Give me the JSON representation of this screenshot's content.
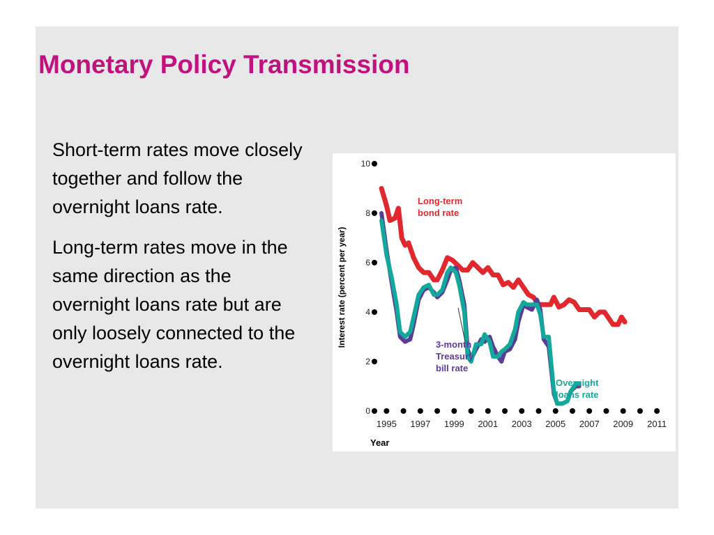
{
  "slide": {
    "title": "Monetary Policy Transmission",
    "paragraphs": [
      "Short-term rates move closely together and follow the overnight loans rate.",
      "Long-term rates move in the same direction as the overnight loans rate but are only loosely connected to the overnight loans rate."
    ],
    "title_color": "#c0127f",
    "background": "#e8e8e8"
  },
  "chart_data": {
    "type": "line",
    "title": "",
    "xlabel": "Year",
    "ylabel": "Interest rate (percent per year)",
    "xlim": [
      1994.2,
      2011.2
    ],
    "ylim": [
      0,
      10
    ],
    "x_ticks": [
      "1995",
      "1997",
      "1999",
      "2001",
      "2003",
      "2005",
      "2007",
      "2009",
      "2011"
    ],
    "y_ticks": [
      "0",
      "2",
      "4",
      "6",
      "8",
      "10"
    ],
    "grid": false,
    "legend": "inline labels",
    "series": [
      {
        "name": "Long-term bond rate",
        "label_lines": [
          "Long-term",
          "bond rate"
        ],
        "color": "#e0282e",
        "points": [
          [
            1994.7,
            9.0
          ],
          [
            1995.0,
            8.3
          ],
          [
            1995.2,
            7.7
          ],
          [
            1995.5,
            7.8
          ],
          [
            1995.7,
            8.2
          ],
          [
            1995.9,
            7.0
          ],
          [
            1996.1,
            6.7
          ],
          [
            1996.3,
            6.8
          ],
          [
            1996.6,
            6.2
          ],
          [
            1996.9,
            5.8
          ],
          [
            1997.2,
            5.6
          ],
          [
            1997.5,
            5.6
          ],
          [
            1997.8,
            5.3
          ],
          [
            1998.0,
            5.3
          ],
          [
            1998.3,
            5.7
          ],
          [
            1998.6,
            6.2
          ],
          [
            1998.9,
            6.1
          ],
          [
            1999.2,
            5.9
          ],
          [
            1999.5,
            5.7
          ],
          [
            1999.8,
            5.7
          ],
          [
            2000.1,
            6.0
          ],
          [
            2000.4,
            5.8
          ],
          [
            2000.7,
            5.6
          ],
          [
            2001.0,
            5.8
          ],
          [
            2001.3,
            5.5
          ],
          [
            2001.6,
            5.5
          ],
          [
            2001.9,
            5.1
          ],
          [
            2002.2,
            5.2
          ],
          [
            2002.5,
            5.0
          ],
          [
            2002.8,
            5.3
          ],
          [
            2003.1,
            5.0
          ],
          [
            2003.4,
            4.7
          ],
          [
            2003.7,
            4.6
          ],
          [
            2004.0,
            4.3
          ],
          [
            2004.4,
            4.3
          ],
          [
            2004.7,
            4.3
          ],
          [
            2004.9,
            4.6
          ],
          [
            2005.2,
            4.2
          ],
          [
            2005.5,
            4.3
          ],
          [
            2005.8,
            4.5
          ],
          [
            2006.1,
            4.4
          ],
          [
            2006.4,
            4.1
          ],
          [
            2006.7,
            4.1
          ],
          [
            2007.0,
            4.1
          ],
          [
            2007.3,
            3.8
          ],
          [
            2007.6,
            4.0
          ],
          [
            2007.9,
            4.0
          ],
          [
            2008.2,
            3.7
          ],
          [
            2008.4,
            3.5
          ],
          [
            2008.7,
            3.5
          ],
          [
            2008.9,
            3.8
          ],
          [
            2009.1,
            3.6
          ]
        ]
      },
      {
        "name": "3-month Treasury bill rate",
        "label_lines": [
          "3-month",
          "Treasury",
          "bill rate"
        ],
        "color": "#5c3b96",
        "points": [
          [
            1994.7,
            8.0
          ],
          [
            1995.0,
            6.5
          ],
          [
            1995.3,
            5.2
          ],
          [
            1995.6,
            4.0
          ],
          [
            1995.8,
            3.0
          ],
          [
            1996.1,
            2.8
          ],
          [
            1996.4,
            2.9
          ],
          [
            1996.6,
            3.5
          ],
          [
            1996.9,
            4.5
          ],
          [
            1997.2,
            4.9
          ],
          [
            1997.5,
            5.0
          ],
          [
            1997.8,
            4.8
          ],
          [
            1998.0,
            4.6
          ],
          [
            1998.3,
            4.8
          ],
          [
            1998.6,
            5.3
          ],
          [
            1998.8,
            5.7
          ],
          [
            1999.1,
            5.8
          ],
          [
            1999.3,
            5.3
          ],
          [
            1999.6,
            4.3
          ],
          [
            1999.8,
            2.5
          ],
          [
            2000.0,
            2.1
          ],
          [
            2000.3,
            2.5
          ],
          [
            2000.6,
            2.9
          ],
          [
            2000.8,
            2.8
          ],
          [
            2001.1,
            3.0
          ],
          [
            2001.3,
            2.6
          ],
          [
            2001.6,
            2.2
          ],
          [
            2001.8,
            2.0
          ],
          [
            2002.0,
            2.4
          ],
          [
            2002.3,
            2.5
          ],
          [
            2002.6,
            2.9
          ],
          [
            2002.8,
            3.6
          ],
          [
            2003.1,
            4.3
          ],
          [
            2003.3,
            4.2
          ],
          [
            2003.6,
            4.1
          ],
          [
            2003.9,
            4.5
          ],
          [
            2004.1,
            4.1
          ],
          [
            2004.3,
            2.9
          ],
          [
            2004.6,
            2.6
          ],
          [
            2004.9,
            0.7
          ],
          [
            2005.1,
            0.3
          ],
          [
            2005.4,
            0.3
          ],
          [
            2005.7,
            0.4
          ],
          [
            2005.9,
            0.8
          ],
          [
            2006.2,
            1.0
          ],
          [
            2006.4,
            1.0
          ]
        ]
      },
      {
        "name": "Overnight loans rate",
        "label_lines": [
          "Overnight",
          "loans rate"
        ],
        "color": "#12a89b",
        "points": [
          [
            1994.7,
            7.7
          ],
          [
            1995.0,
            6.3
          ],
          [
            1995.3,
            5.4
          ],
          [
            1995.6,
            4.3
          ],
          [
            1995.8,
            3.2
          ],
          [
            1996.1,
            3.0
          ],
          [
            1996.4,
            3.2
          ],
          [
            1996.6,
            3.8
          ],
          [
            1996.9,
            4.7
          ],
          [
            1997.2,
            5.0
          ],
          [
            1997.5,
            5.1
          ],
          [
            1997.8,
            4.7
          ],
          [
            1998.0,
            4.7
          ],
          [
            1998.3,
            4.9
          ],
          [
            1998.6,
            5.6
          ],
          [
            1998.8,
            5.8
          ],
          [
            1999.1,
            5.6
          ],
          [
            1999.3,
            5.1
          ],
          [
            1999.6,
            4.0
          ],
          [
            1999.8,
            2.2
          ],
          [
            2000.0,
            2.0
          ],
          [
            2000.3,
            2.7
          ],
          [
            2000.6,
            2.7
          ],
          [
            2000.8,
            3.1
          ],
          [
            2001.1,
            2.8
          ],
          [
            2001.3,
            2.2
          ],
          [
            2001.6,
            2.2
          ],
          [
            2001.8,
            2.4
          ],
          [
            2002.0,
            2.5
          ],
          [
            2002.3,
            2.7
          ],
          [
            2002.6,
            3.3
          ],
          [
            2002.8,
            4.0
          ],
          [
            2003.1,
            4.4
          ],
          [
            2003.3,
            4.3
          ],
          [
            2003.6,
            4.3
          ],
          [
            2003.9,
            4.3
          ],
          [
            2004.1,
            3.9
          ],
          [
            2004.3,
            3.0
          ],
          [
            2004.6,
            3.0
          ],
          [
            2004.9,
            0.8
          ],
          [
            2005.1,
            0.3
          ],
          [
            2005.4,
            0.3
          ],
          [
            2005.7,
            0.4
          ],
          [
            2005.9,
            0.8
          ],
          [
            2006.2,
            1.1
          ],
          [
            2006.4,
            1.1
          ]
        ]
      }
    ]
  }
}
